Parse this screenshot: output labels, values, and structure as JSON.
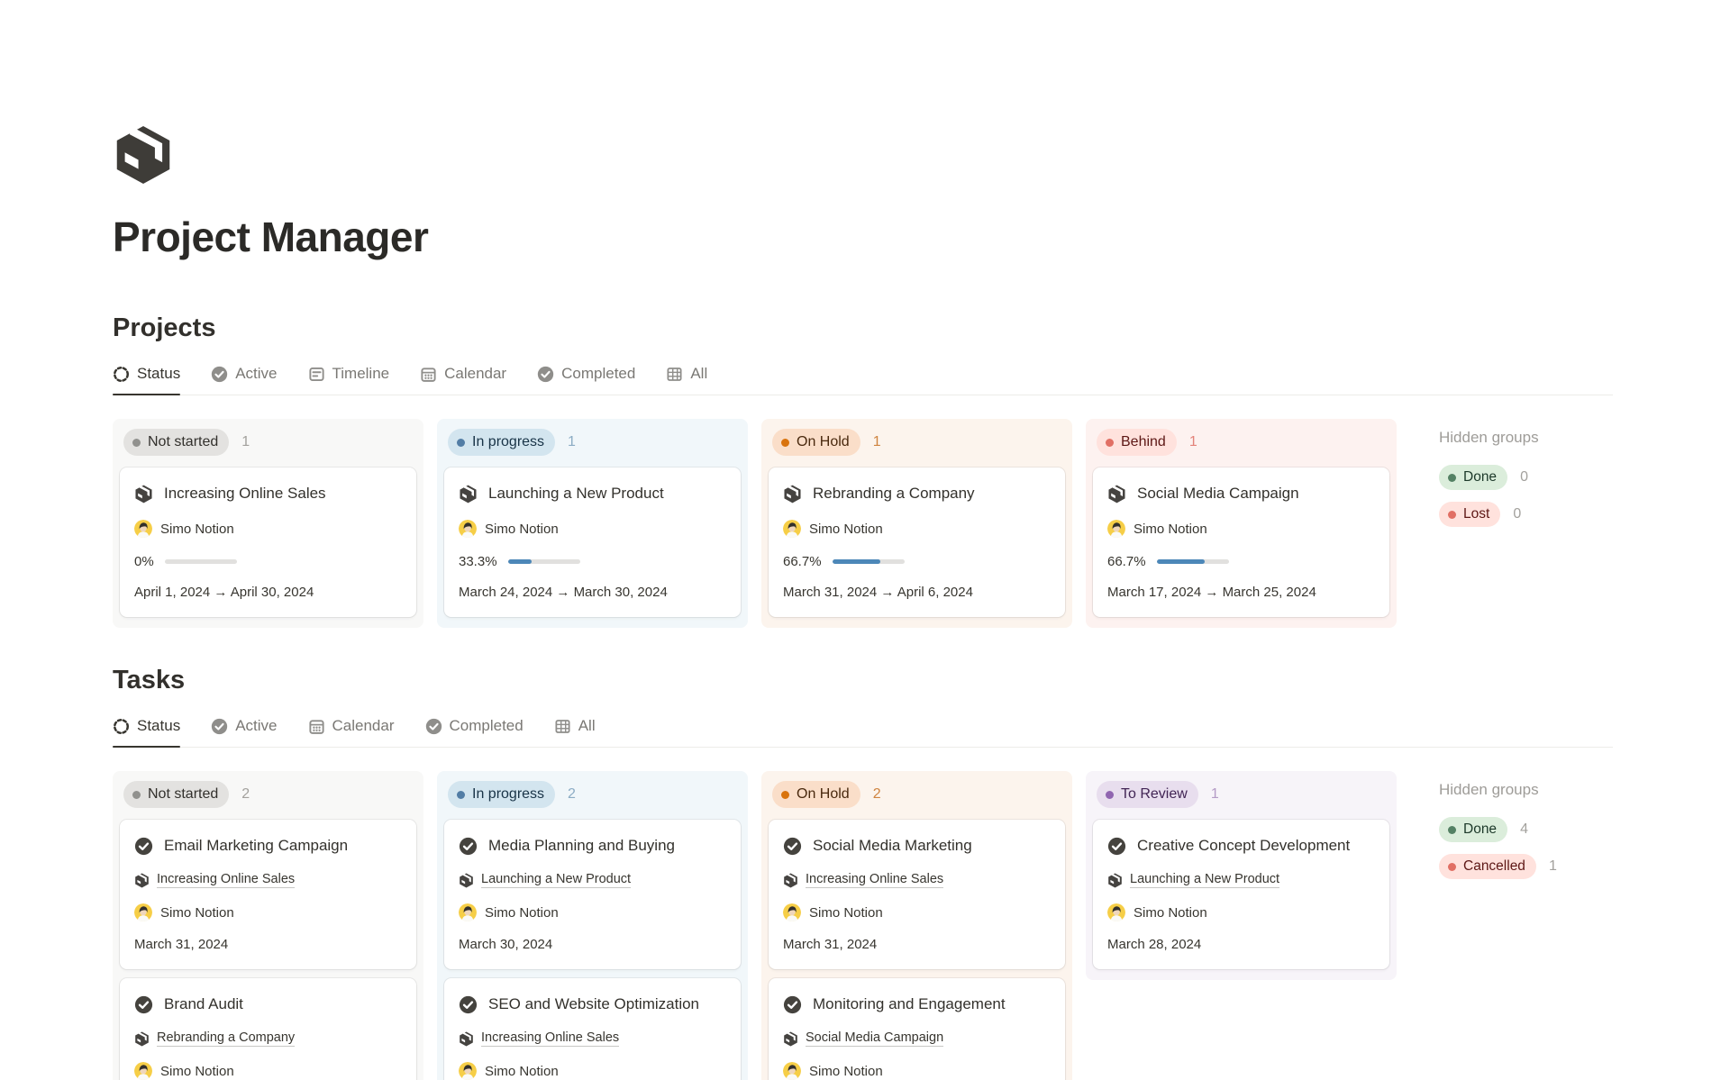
{
  "page": {
    "title": "Project Manager",
    "icon": "package"
  },
  "person_default": "Simo Notion",
  "colors": {
    "progress_fill": "#4c87b8",
    "status": {
      "not_started": {
        "bg": "#e3e2e0",
        "dot": "#91918e"
      },
      "in_progress": {
        "bg": "#d3e5ef",
        "dot": "#527da5"
      },
      "on_hold": {
        "bg": "#fadec9",
        "dot": "#d9730d"
      },
      "behind": {
        "bg": "#ffe2dd",
        "dot": "#e16f64"
      },
      "to_review": {
        "bg": "#e8deee",
        "dot": "#9065b0"
      },
      "done": {
        "bg": "#dbeddb",
        "dot": "#548164"
      },
      "lost": {
        "bg": "#ffe2dd",
        "dot": "#e16f64"
      },
      "cancelled": {
        "bg": "#ffe2dd",
        "dot": "#e16f64"
      }
    }
  },
  "projects": {
    "heading": "Projects",
    "tabs": [
      {
        "label": "Status",
        "icon": "status-icon",
        "active": true
      },
      {
        "label": "Active",
        "icon": "check-circle-icon",
        "active": false
      },
      {
        "label": "Timeline",
        "icon": "timeline-icon",
        "active": false
      },
      {
        "label": "Calendar",
        "icon": "calendar-icon",
        "active": false
      },
      {
        "label": "Completed",
        "icon": "check-circle-icon",
        "active": false
      },
      {
        "label": "All",
        "icon": "table-icon",
        "active": false
      }
    ],
    "columns": [
      {
        "label": "Not started",
        "count": "1",
        "color": "gray",
        "cards": [
          {
            "title": "Increasing Online Sales",
            "person": "Simo Notion",
            "progress_label": "0%",
            "progress_pct": 0,
            "dates": "April 1, 2024 → April 30, 2024"
          }
        ]
      },
      {
        "label": "In progress",
        "count": "1",
        "color": "blue",
        "cards": [
          {
            "title": "Launching a New Product",
            "person": "Simo Notion",
            "progress_label": "33.3%",
            "progress_pct": 33.3,
            "dates": "March 24, 2024 → March 30, 2024"
          }
        ]
      },
      {
        "label": "On Hold",
        "count": "1",
        "color": "orange",
        "cards": [
          {
            "title": "Rebranding a Company",
            "person": "Simo Notion",
            "progress_label": "66.7%",
            "progress_pct": 66.7,
            "dates": "March 31, 2024 → April 6, 2024"
          }
        ]
      },
      {
        "label": "Behind",
        "count": "1",
        "color": "red",
        "cards": [
          {
            "title": "Social Media Campaign",
            "person": "Simo Notion",
            "progress_label": "66.7%",
            "progress_pct": 66.7,
            "dates": "March 17, 2024 → March 25, 2024"
          }
        ]
      }
    ],
    "hidden": {
      "label": "Hidden groups",
      "groups": [
        {
          "label": "Done",
          "count": "0",
          "color": "green"
        },
        {
          "label": "Lost",
          "count": "0",
          "color": "red"
        }
      ]
    }
  },
  "tasks": {
    "heading": "Tasks",
    "tabs": [
      {
        "label": "Status",
        "icon": "status-icon",
        "active": true
      },
      {
        "label": "Active",
        "icon": "check-circle-icon",
        "active": false
      },
      {
        "label": "Calendar",
        "icon": "calendar-icon",
        "active": false
      },
      {
        "label": "Completed",
        "icon": "check-circle-icon",
        "active": false
      },
      {
        "label": "All",
        "icon": "table-icon",
        "active": false
      }
    ],
    "columns": [
      {
        "label": "Not started",
        "count": "2",
        "color": "gray",
        "cards": [
          {
            "title": "Email Marketing Campaign",
            "link": "Increasing Online Sales",
            "person": "Simo Notion",
            "date": "March 31, 2024"
          },
          {
            "title": "Brand Audit",
            "link": "Rebranding a Company",
            "person": "Simo Notion"
          }
        ]
      },
      {
        "label": "In progress",
        "count": "2",
        "color": "blue",
        "cards": [
          {
            "title": "Media Planning and Buying",
            "link": "Launching a New Product",
            "person": "Simo Notion",
            "date": "March 30, 2024"
          },
          {
            "title": "SEO and Website Optimization",
            "link": "Increasing Online Sales",
            "person": "Simo Notion"
          }
        ]
      },
      {
        "label": "On Hold",
        "count": "2",
        "color": "orange",
        "cards": [
          {
            "title": "Social Media Marketing",
            "link": "Increasing Online Sales",
            "person": "Simo Notion",
            "date": "March 31, 2024"
          },
          {
            "title": "Monitoring and Engagement",
            "link": "Social Media Campaign",
            "person": "Simo Notion"
          }
        ]
      },
      {
        "label": "To Review",
        "count": "1",
        "color": "purple",
        "cards": [
          {
            "title": "Creative Concept Development",
            "link": "Launching a New Product",
            "person": "Simo Notion",
            "date": "March 28, 2024"
          }
        ]
      }
    ],
    "hidden": {
      "label": "Hidden groups",
      "groups": [
        {
          "label": "Done",
          "count": "4",
          "color": "green"
        },
        {
          "label": "Cancelled",
          "count": "1",
          "color": "red"
        }
      ]
    }
  }
}
